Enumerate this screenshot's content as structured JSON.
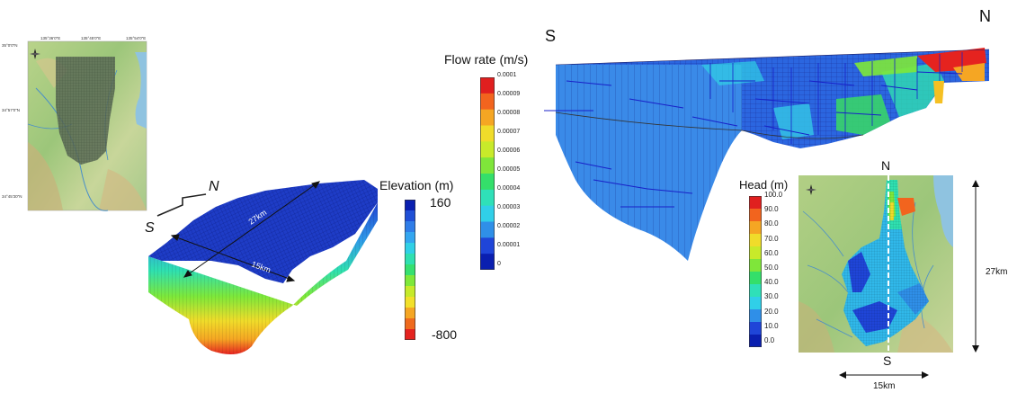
{
  "map_small": {
    "lon_ticks": [
      "135°36'0\"E",
      "135°45'0\"E",
      "135°54'0\"E"
    ],
    "lat_ticks": [
      "35°0'0\"N",
      "34°57'0\"N",
      "34°45'30\"N"
    ]
  },
  "model3d": {
    "north": "N",
    "south": "S",
    "length": "27km",
    "width": "15km"
  },
  "elevation_legend": {
    "title": "Elevation (m)",
    "max": "160",
    "min": "-800",
    "colors": [
      "#0a1fb0",
      "#1f4fd6",
      "#2f7de8",
      "#33a6f0",
      "#30d0e6",
      "#2fe0b0",
      "#36e070",
      "#7ee83a",
      "#c6ea2a",
      "#f2e02a",
      "#f5a623",
      "#ef6a1d",
      "#e5231f"
    ]
  },
  "flow_legend": {
    "title": "Flow rate (m/s)",
    "ticks": [
      "0.0001",
      "0.00009",
      "0.00008",
      "0.00007",
      "0.00006",
      "0.00005",
      "0.00004",
      "0.00003",
      "0.00002",
      "0.00001",
      "0"
    ],
    "colors": [
      "#e01f1f",
      "#f2641e",
      "#f5a623",
      "#f0dc2a",
      "#c8ea2a",
      "#7fe63a",
      "#34df6a",
      "#2fe0b8",
      "#30cfe8",
      "#2f8fe8",
      "#1f45d8",
      "#0a1fb0"
    ]
  },
  "cross_section": {
    "south": "S",
    "north": "N"
  },
  "head_legend": {
    "title": "Head (m)",
    "ticks": [
      "100.0",
      "90.0",
      "80.0",
      "70.0",
      "60.0",
      "50.0",
      "40.0",
      "30.0",
      "20.0",
      "10.0",
      "0.0"
    ],
    "colors": [
      "#e0201f",
      "#f2641e",
      "#f5a623",
      "#f0dc2a",
      "#c8ea2a",
      "#7fe63a",
      "#34df6a",
      "#2fe0b8",
      "#30cfe8",
      "#2f8fe8",
      "#1f45d8",
      "#0a1fb0"
    ]
  },
  "head_map": {
    "north": "N",
    "south": "S",
    "length": "27km",
    "width": "15km"
  }
}
